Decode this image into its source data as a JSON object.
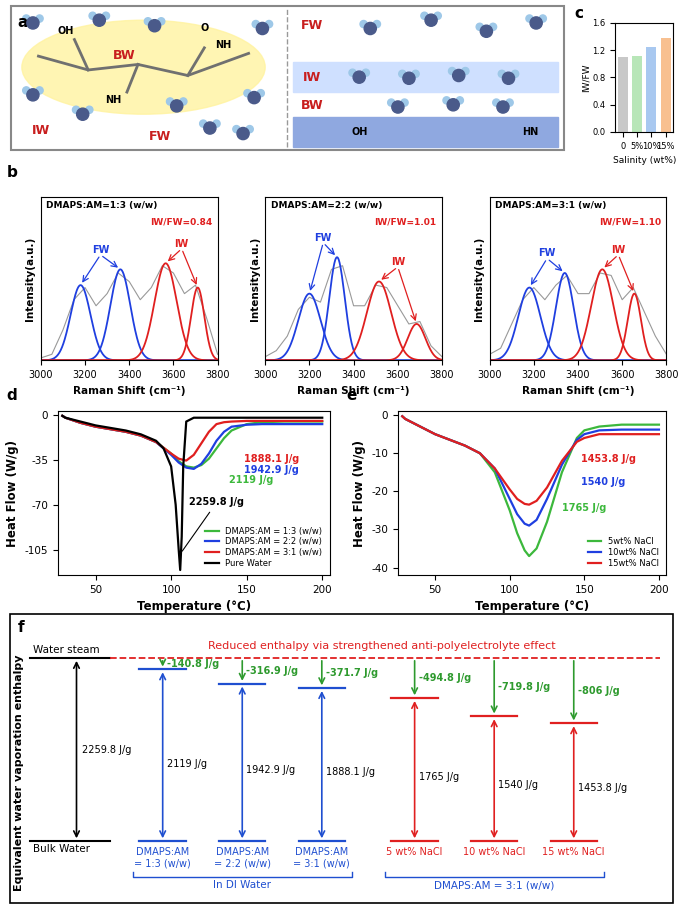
{
  "diagram_a": {
    "panel_label": "a",
    "left": {
      "labels": [
        "BW",
        "IW",
        "FW"
      ],
      "groups": [
        "OH",
        "NH",
        "O",
        "NH"
      ]
    },
    "right": {
      "labels": [
        "FW",
        "IW",
        "BW"
      ],
      "groups": [
        "OH",
        "HN"
      ]
    }
  },
  "chart_data": [
    {
      "type": "line",
      "panel_label": "b",
      "title": "DMAPS:AM=1:3 (w/w)",
      "ratio_text": "IW/FW=0.84",
      "xlabel": "Raman Shift (cm⁻¹)",
      "ylabel": "Intensity(a.u.)",
      "xlim": [
        3000,
        3800
      ],
      "xticks": [
        3000,
        3200,
        3400,
        3600,
        3800
      ],
      "ylim": [
        0,
        1.35
      ],
      "tick_labels": "x",
      "raw": {
        "color": "#999999",
        "x": [
          3000,
          3050,
          3100,
          3150,
          3200,
          3250,
          3300,
          3350,
          3400,
          3450,
          3500,
          3550,
          3600,
          3650,
          3700,
          3750,
          3800
        ],
        "values": [
          0.02,
          0.05,
          0.25,
          0.5,
          0.6,
          0.45,
          0.55,
          0.72,
          0.65,
          0.5,
          0.6,
          0.78,
          0.72,
          0.55,
          0.62,
          0.35,
          0.05
        ]
      },
      "peak_groups": [
        {
          "name": "FW",
          "color": "#1f3fe0",
          "peaks": [
            {
              "center": 3180,
              "height": 0.62,
              "sigma": 45
            },
            {
              "center": 3360,
              "height": 0.75,
              "sigma": 45
            }
          ]
        },
        {
          "name": "IW",
          "color": "#e01f1f",
          "peaks": [
            {
              "center": 3565,
              "height": 0.8,
              "sigma": 50
            },
            {
              "center": 3710,
              "height": 0.6,
              "sigma": 30
            }
          ]
        }
      ]
    },
    {
      "type": "line",
      "title": "DMAPS:AM=2:2 (w/w)",
      "ratio_text": "IW/FW=1.01",
      "xlabel": "Raman Shift (cm⁻¹)",
      "ylabel": "Intensity(a.u.)",
      "xlim": [
        3000,
        3800
      ],
      "xticks": [
        3000,
        3200,
        3400,
        3600,
        3800
      ],
      "ylim": [
        0,
        1.35
      ],
      "tick_labels": "x",
      "raw": {
        "color": "#999999",
        "x": [
          3000,
          3050,
          3100,
          3150,
          3200,
          3250,
          3300,
          3350,
          3400,
          3450,
          3500,
          3550,
          3600,
          3650,
          3700,
          3750,
          3800
        ],
        "values": [
          0.03,
          0.08,
          0.2,
          0.42,
          0.52,
          0.48,
          0.75,
          0.78,
          0.45,
          0.45,
          0.62,
          0.6,
          0.45,
          0.3,
          0.32,
          0.12,
          0.03
        ]
      },
      "peak_groups": [
        {
          "name": "FW",
          "color": "#1f3fe0",
          "peaks": [
            {
              "center": 3200,
              "height": 0.55,
              "sigma": 50
            },
            {
              "center": 3325,
              "height": 0.85,
              "sigma": 35
            }
          ]
        },
        {
          "name": "IW",
          "color": "#e01f1f",
          "peaks": [
            {
              "center": 3515,
              "height": 0.65,
              "sigma": 55
            },
            {
              "center": 3685,
              "height": 0.3,
              "sigma": 40
            }
          ]
        }
      ]
    },
    {
      "type": "line",
      "title": "DMAPS:AM=3:1 (w/w)",
      "ratio_text": "IW/FW=1.10",
      "xlabel": "Raman Shift (cm⁻¹)",
      "ylabel": "Intensity(a.u.)",
      "xlim": [
        3000,
        3800
      ],
      "xticks": [
        3000,
        3200,
        3400,
        3600,
        3800
      ],
      "ylim": [
        0,
        1.35
      ],
      "tick_labels": "x",
      "raw": {
        "color": "#999999",
        "x": [
          3000,
          3050,
          3100,
          3150,
          3200,
          3250,
          3300,
          3350,
          3400,
          3450,
          3500,
          3550,
          3600,
          3650,
          3700,
          3750,
          3800
        ],
        "values": [
          0.05,
          0.1,
          0.3,
          0.5,
          0.6,
          0.5,
          0.62,
          0.7,
          0.55,
          0.55,
          0.72,
          0.7,
          0.5,
          0.6,
          0.4,
          0.2,
          0.05
        ]
      },
      "peak_groups": [
        {
          "name": "FW",
          "color": "#1f3fe0",
          "peaks": [
            {
              "center": 3180,
              "height": 0.6,
              "sigma": 50
            },
            {
              "center": 3340,
              "height": 0.72,
              "sigma": 40
            }
          ]
        },
        {
          "name": "IW",
          "color": "#e01f1f",
          "peaks": [
            {
              "center": 3510,
              "height": 0.75,
              "sigma": 50
            },
            {
              "center": 3655,
              "height": 0.55,
              "sigma": 30
            }
          ]
        }
      ]
    },
    {
      "type": "bar",
      "panel_label": "c",
      "xlabel": "Salinity (wt%)",
      "ylabel": "IW/FW",
      "categories": [
        "0",
        "5%",
        "10%",
        "15%"
      ],
      "values": [
        1.1,
        1.12,
        1.25,
        1.37
      ],
      "colors": [
        "#c8c8c8",
        "#b8e6b8",
        "#a8c8f0",
        "#f8c090"
      ],
      "ylim": [
        0,
        1.6
      ],
      "yticks": [
        {
          "value": 0,
          "label": "0.0"
        },
        0.4,
        0.8,
        1.2,
        1.6
      ]
    },
    {
      "type": "line",
      "panel_label": "d",
      "xlabel": "Temperature (°C)",
      "ylabel": "Heat Flow (W/g)",
      "xlim": [
        25,
        205
      ],
      "xticks": [
        50,
        100,
        150,
        200
      ],
      "ylim": [
        -125,
        3
      ],
      "yticks": [
        0,
        -35,
        -70,
        -105
      ],
      "legend": "lower right",
      "series": [
        {
          "name": "DMAPS:AM = 1:3 (w/w)",
          "color": "#3cb83c",
          "annotation": "2119 J/g",
          "x": [
            28,
            30,
            40,
            50,
            60,
            70,
            80,
            90,
            100,
            105,
            110,
            115,
            120,
            125,
            130,
            135,
            140,
            150,
            160,
            175,
            200
          ],
          "values": [
            -0.5,
            -2,
            -6,
            -9,
            -11,
            -13,
            -16,
            -21,
            -30,
            -36,
            -40,
            -41,
            -39,
            -34,
            -26,
            -18,
            -12,
            -7,
            -5.5,
            -5,
            -5
          ]
        },
        {
          "name": "DMAPS:AM = 2:2 (w/w)",
          "color": "#1f3fe0",
          "annotation": "1942.9 J/g",
          "x": [
            28,
            30,
            40,
            50,
            60,
            70,
            80,
            90,
            100,
            105,
            110,
            115,
            120,
            125,
            130,
            135,
            140,
            150,
            160,
            175,
            200
          ],
          "values": [
            -0.5,
            -2,
            -6,
            -9,
            -11,
            -13,
            -16,
            -21,
            -31,
            -37,
            -41,
            -42,
            -38,
            -30,
            -20,
            -13,
            -9,
            -7.5,
            -7,
            -7,
            -7
          ]
        },
        {
          "name": "DMAPS:AM = 3:1 (w/w)",
          "color": "#e01f1f",
          "annotation": "1888.1 J/g",
          "x": [
            28,
            30,
            40,
            50,
            60,
            70,
            80,
            90,
            100,
            105,
            110,
            115,
            120,
            125,
            130,
            135,
            140,
            150,
            160,
            175,
            200
          ],
          "values": [
            -0.5,
            -2,
            -6,
            -9,
            -11,
            -13,
            -16,
            -21,
            -30,
            -34,
            -35.5,
            -31,
            -22,
            -13,
            -7,
            -5.5,
            -5,
            -4.5,
            -4.5,
            -4.5,
            -4.5
          ]
        },
        {
          "name": "Pure Water",
          "color": "#000000",
          "annotation": "2259.8 J/g",
          "x": [
            28,
            30,
            40,
            50,
            60,
            70,
            80,
            90,
            95,
            100,
            103,
            105,
            106,
            107,
            108,
            110,
            115,
            130,
            150,
            175,
            200
          ],
          "values": [
            -0.5,
            -2,
            -5,
            -8,
            -10,
            -12,
            -15,
            -20,
            -26,
            -40,
            -70,
            -105,
            -121,
            -95,
            -40,
            -5,
            -2,
            -2,
            -2,
            -2,
            -2
          ]
        }
      ]
    },
    {
      "type": "line",
      "panel_label": "e",
      "xlabel": "Temperature (°C)",
      "ylabel": "Heat Flow (W/g)",
      "xlim": [
        25,
        205
      ],
      "xticks": [
        50,
        100,
        150,
        200
      ],
      "ylim": [
        -42,
        1
      ],
      "yticks": [
        0,
        -10,
        -20,
        -30,
        -40
      ],
      "legend": "lower right",
      "series": [
        {
          "name": "5wt% NaCl",
          "color": "#3cb83c",
          "annotation": "1765 J/g",
          "x": [
            28,
            30,
            40,
            50,
            60,
            70,
            80,
            90,
            100,
            105,
            110,
            113,
            118,
            125,
            135,
            145,
            150,
            160,
            175,
            200
          ],
          "values": [
            -0.3,
            -1,
            -3,
            -5,
            -6.5,
            -8,
            -10,
            -15,
            -25,
            -31,
            -35.5,
            -37,
            -35,
            -28,
            -15,
            -6,
            -4,
            -3,
            -2.5,
            -2.5
          ]
        },
        {
          "name": "10wt% NaCl",
          "color": "#1f3fe0",
          "annotation": "1540 J/g",
          "x": [
            28,
            30,
            40,
            50,
            60,
            70,
            80,
            90,
            100,
            105,
            110,
            113,
            118,
            125,
            135,
            145,
            150,
            160,
            175,
            200
          ],
          "values": [
            -0.3,
            -1,
            -3,
            -5,
            -6.5,
            -8,
            -10,
            -14,
            -22,
            -26,
            -28.5,
            -29,
            -27.5,
            -22,
            -13,
            -6.5,
            -5,
            -4,
            -3.8,
            -3.8
          ]
        },
        {
          "name": "15wt% NaCl",
          "color": "#e01f1f",
          "annotation": "1453.8 J/g",
          "x": [
            28,
            30,
            40,
            50,
            60,
            70,
            80,
            90,
            100,
            105,
            110,
            113,
            118,
            125,
            135,
            145,
            150,
            160,
            175,
            200
          ],
          "values": [
            -0.3,
            -1,
            -3,
            -5,
            -6.5,
            -8,
            -10,
            -14,
            -19.5,
            -22,
            -23.3,
            -23.5,
            -22.5,
            -19,
            -12,
            -7,
            -6,
            -5,
            -5,
            -5
          ]
        }
      ]
    }
  ],
  "diagram_f": {
    "panel_label": "f",
    "ylabel": "Equivalent water vaporation enthalpy",
    "top_label": "Water steam",
    "bottom_label": "Bulk Water",
    "note": "Reduced enthalpy via strengthened anti-polyelectrolyte effect",
    "total": {
      "value": 2259.8,
      "label": "2259.8 J/g"
    },
    "groups": [
      {
        "name": "In DI Water",
        "color": "#1f4fd0",
        "items": [
          {
            "label": "DMAPS:AM\n= 1:3 (w/w)",
            "value": 2119,
            "value_label": "2119 J/g",
            "delta_label": "-140.8 J/g"
          },
          {
            "label": "DMAPS:AM\n= 2:2 (w/w)",
            "value": 1942.9,
            "value_label": "1942.9 J/g",
            "delta_label": "-316.9 J/g"
          },
          {
            "label": "DMAPS:AM\n= 3:1 (w/w)",
            "value": 1888.1,
            "value_label": "1888.1 J/g",
            "delta_label": "-371.7 J/g"
          }
        ]
      },
      {
        "name": "DMAPS:AM = 3:1 (w/w)",
        "color": "#e02020",
        "items": [
          {
            "label": "5 wt% NaCl",
            "value": 1765,
            "value_label": "1765 J/g",
            "delta_label": "-494.8 J/g"
          },
          {
            "label": "10 wt% NaCl",
            "value": 1540,
            "value_label": "1540 J/g",
            "delta_label": "-719.8 J/g"
          },
          {
            "label": "15 wt% NaCl",
            "value": 1453.8,
            "value_label": "1453.8 J/g",
            "delta_label": "-806 J/g"
          }
        ]
      }
    ]
  }
}
